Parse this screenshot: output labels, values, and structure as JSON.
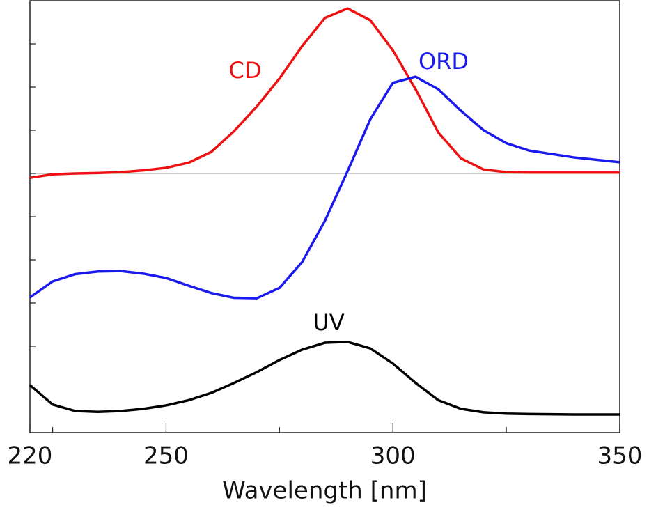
{
  "chart_data": {
    "type": "line",
    "xlabel": "Wavelength [nm]",
    "x": [
      220,
      225,
      230,
      235,
      240,
      245,
      250,
      255,
      260,
      265,
      270,
      275,
      280,
      285,
      290,
      295,
      300,
      305,
      310,
      315,
      320,
      325,
      330,
      340,
      350
    ],
    "series": [
      {
        "name": "CD",
        "color": "#ee1111",
        "values": [
          -0.1,
          -0.02,
          0,
          0.01,
          0.03,
          0.07,
          0.13,
          0.25,
          0.5,
          0.98,
          1.55,
          2.2,
          2.95,
          3.6,
          3.82,
          3.55,
          2.85,
          1.95,
          0.95,
          0.35,
          0.09,
          0.03,
          0.02,
          0.02,
          0.02
        ]
      },
      {
        "name": "ORD",
        "color": "#1a1aee",
        "values": [
          -2.87,
          -2.5,
          -2.33,
          -2.27,
          -2.26,
          -2.32,
          -2.42,
          -2.6,
          -2.77,
          -2.88,
          -2.89,
          -2.65,
          -2.05,
          -1.1,
          0.05,
          1.25,
          2.1,
          2.24,
          1.95,
          1.45,
          1.0,
          0.7,
          0.53,
          0.37,
          0.26
        ]
      },
      {
        "name": "UV",
        "color": "#000000",
        "values": [
          -4.9,
          -5.35,
          -5.5,
          -5.52,
          -5.5,
          -5.45,
          -5.37,
          -5.25,
          -5.08,
          -4.85,
          -4.6,
          -4.32,
          -4.08,
          -3.92,
          -3.9,
          -4.05,
          -4.4,
          -4.85,
          -5.25,
          -5.45,
          -5.53,
          -5.56,
          -5.57,
          -5.58,
          -5.58
        ]
      }
    ],
    "xlim": [
      220,
      350
    ],
    "xticks": [
      220,
      250,
      300,
      350
    ],
    "xminor_ticks": [
      225,
      275,
      325
    ],
    "ylim": [
      -6,
      4
    ],
    "yticks": [
      -4,
      -3,
      -2,
      -1,
      0,
      1,
      2,
      3
    ],
    "zero_line": true
  }
}
